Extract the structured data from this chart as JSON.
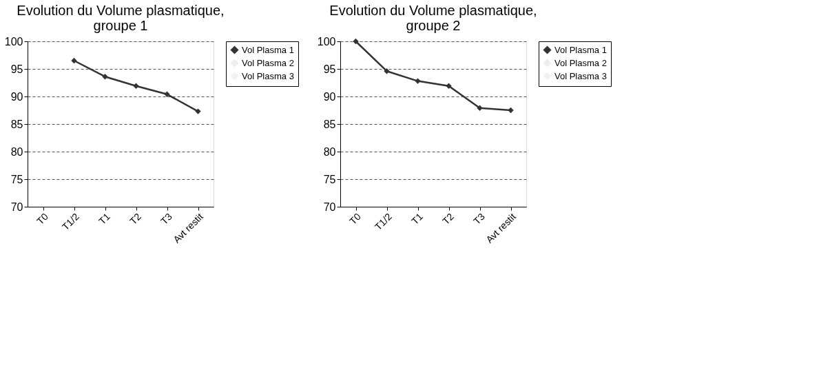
{
  "chart_data": [
    {
      "type": "line",
      "title": "Evolution du Volume plasmatique,\ngroupe 1",
      "categories": [
        "T0",
        "T1/2",
        "T1",
        "T2",
        "T3",
        "Avt restit"
      ],
      "series": [
        {
          "name": "Vol Plasma 1",
          "color": "#333333",
          "values": [
            null,
            96.5,
            93.6,
            91.9,
            90.4,
            87.3
          ]
        },
        {
          "name": "Vol Plasma 2",
          "color": "#eeeeee",
          "values": [
            null,
            null,
            null,
            null,
            null,
            null
          ]
        },
        {
          "name": "Vol Plasma 3",
          "color": "#f2f2f2",
          "values": [
            null,
            null,
            null,
            null,
            null,
            null
          ]
        }
      ],
      "ylim": [
        70,
        100
      ],
      "yticks": [
        70,
        75,
        80,
        85,
        90,
        95,
        100
      ],
      "grid": "y",
      "legend": "right",
      "marker": "diamond",
      "line_style": "solid"
    },
    {
      "type": "line",
      "title": "Evolution du Volume plasmatique,\ngroupe 2",
      "categories": [
        "T0",
        "T1/2",
        "T1",
        "T2",
        "T3",
        "Avt restit"
      ],
      "series": [
        {
          "name": "Vol Plasma 1",
          "color": "#333333",
          "values": [
            100,
            94.6,
            92.8,
            91.9,
            87.9,
            87.5
          ]
        },
        {
          "name": "Vol Plasma 2",
          "color": "#eeeeee",
          "values": [
            null,
            null,
            null,
            null,
            null,
            null
          ]
        },
        {
          "name": "Vol Plasma 3",
          "color": "#f2f2f2",
          "values": [
            null,
            null,
            null,
            null,
            null,
            null
          ]
        }
      ],
      "ylim": [
        70,
        100
      ],
      "yticks": [
        70,
        75,
        80,
        85,
        90,
        95,
        100
      ],
      "grid": "y",
      "legend": "right",
      "marker": "diamond",
      "line_style": "solid"
    }
  ]
}
